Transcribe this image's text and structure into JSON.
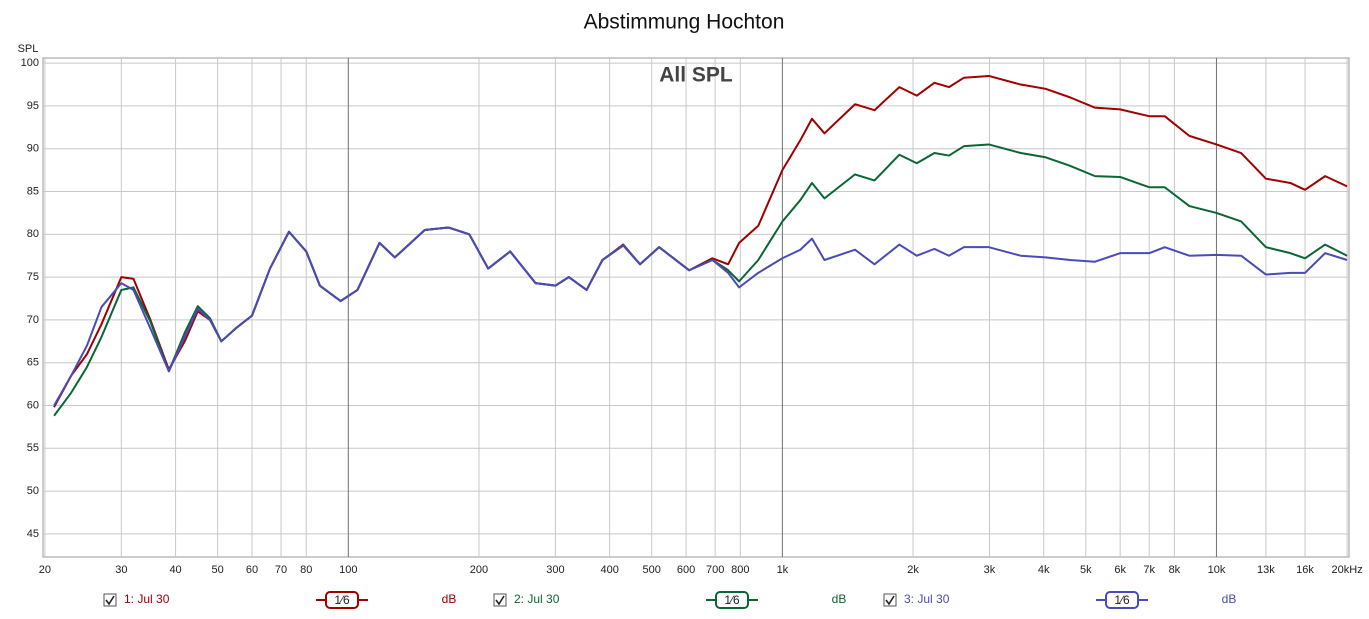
{
  "chart_data": {
    "type": "line",
    "title": "Abstimmung Hochton",
    "y_label": "SPL",
    "annotation": "All SPL",
    "log_x": true,
    "grid": true,
    "xlim": [
      19.8,
      20200
    ],
    "ylim": [
      42.3,
      100.6
    ],
    "yticks": [
      45,
      50,
      55,
      60,
      65,
      70,
      75,
      80,
      85,
      90,
      95,
      100
    ],
    "xticks": [
      20,
      30,
      40,
      50,
      60,
      70,
      80,
      100,
      200,
      300,
      400,
      500,
      600,
      700,
      800,
      {
        "value": 1000,
        "label": "1k"
      },
      {
        "value": 2000,
        "label": "2k"
      },
      {
        "value": 3000,
        "label": "3k"
      },
      {
        "value": 4000,
        "label": "4k"
      },
      {
        "value": 5000,
        "label": "5k"
      },
      {
        "value": 6000,
        "label": "6k"
      },
      {
        "value": 7000,
        "label": "7k"
      },
      {
        "value": 8000,
        "label": "8k"
      },
      {
        "value": 10000,
        "label": "10k"
      },
      {
        "value": 13000,
        "label": "13k"
      },
      {
        "value": 16000,
        "label": "16k"
      },
      {
        "value": 20000,
        "label": "20kHz"
      }
    ],
    "x": [
      21,
      23,
      25,
      27,
      30,
      32,
      35,
      38.6,
      42,
      45,
      48,
      51,
      55,
      60,
      66,
      73,
      80,
      86,
      96,
      105,
      118,
      128,
      150,
      170,
      190,
      210,
      236,
      270,
      300,
      322,
      354,
      385,
      430,
      470,
      520,
      610,
      690,
      750,
      795,
      880,
      1000,
      1100,
      1170,
      1250,
      1470,
      1630,
      1860,
      2040,
      2240,
      2420,
      2620,
      2990,
      3540,
      4040,
      4600,
      5250,
      6000,
      7000,
      7600,
      8660,
      10000,
      11400,
      13000,
      14800,
      16000,
      17800,
      20000
    ],
    "series": [
      {
        "name": "1: Jul 30",
        "smoothing": "1⁄6",
        "unit": "dB",
        "color": "#a00000",
        "values": [
          59.8,
          63.5,
          66,
          69.5,
          75,
          74.8,
          70,
          64.2,
          67.5,
          71,
          70,
          67.5,
          69,
          70.5,
          76,
          80.3,
          78,
          74,
          72.2,
          73.5,
          79,
          77.3,
          80.5,
          80.8,
          80,
          76,
          78,
          74.3,
          74,
          75,
          73.5,
          77,
          78.8,
          76.5,
          78.5,
          75.8,
          77.2,
          76.5,
          79,
          81,
          87.5,
          91,
          93.5,
          91.8,
          95.2,
          94.5,
          97.2,
          96.2,
          97.7,
          97.2,
          98.3,
          98.5,
          97.5,
          97,
          96,
          94.8,
          94.6,
          93.8,
          93.8,
          91.5,
          90.5,
          89.5,
          86.5,
          86,
          85.2,
          86.8,
          85.6
        ]
      },
      {
        "name": "2: Jul 30",
        "smoothing": "1⁄6",
        "unit": "dB",
        "color": "#0a6633",
        "values": [
          58.8,
          61.5,
          64.5,
          68,
          73.5,
          73.8,
          69.8,
          64,
          68.5,
          71.6,
          70.2,
          67.5,
          69,
          70.5,
          76,
          80.3,
          78,
          74,
          72.2,
          73.5,
          79,
          77.3,
          80.5,
          80.8,
          80,
          76,
          78,
          74.3,
          74,
          75,
          73.5,
          77,
          78.7,
          76.5,
          78.5,
          75.8,
          77,
          75.8,
          74.5,
          77,
          81.5,
          84,
          86,
          84.2,
          87,
          86.3,
          89.3,
          88.3,
          89.5,
          89.2,
          90.3,
          90.5,
          89.5,
          89,
          88,
          86.8,
          86.7,
          85.5,
          85.5,
          83.3,
          82.5,
          81.5,
          78.5,
          77.8,
          77.2,
          78.8,
          77.5
        ]
      },
      {
        "name": "3: Jul 30",
        "smoothing": "1⁄6",
        "unit": "dB",
        "color": "#4a4ab8",
        "values": [
          60,
          63.5,
          67,
          71.5,
          74.3,
          73.5,
          69,
          64,
          68,
          71.3,
          70,
          67.5,
          69,
          70.5,
          76,
          80.3,
          78,
          74,
          72.2,
          73.5,
          79,
          77.3,
          80.5,
          80.8,
          80,
          76,
          78,
          74.3,
          74,
          75,
          73.5,
          77,
          78.7,
          76.5,
          78.5,
          75.8,
          77,
          75.5,
          73.8,
          75.5,
          77.2,
          78.2,
          79.5,
          77,
          78.2,
          76.5,
          78.8,
          77.5,
          78.3,
          77.5,
          78.5,
          78.5,
          77.5,
          77.3,
          77,
          76.8,
          77.8,
          77.8,
          78.5,
          77.5,
          77.6,
          77.5,
          75.3,
          75.5,
          75.5,
          77.8,
          77
        ]
      }
    ]
  }
}
